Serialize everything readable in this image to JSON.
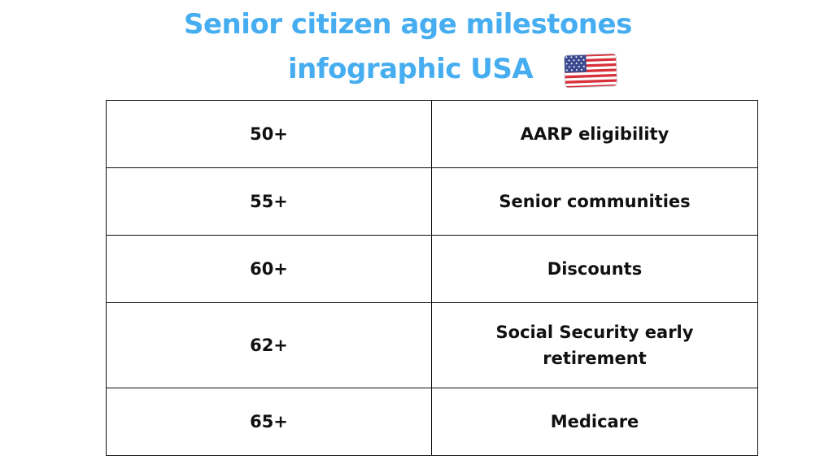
{
  "title": {
    "line1": "Senior citizen age milestones",
    "line2": "infographic USA"
  },
  "flag_icon": "usa-flag-icon",
  "colors": {
    "title": "#45adf0",
    "border": "#111111",
    "text": "#111111"
  },
  "table": {
    "rows": [
      {
        "age": "50+",
        "milestone": "AARP eligibility"
      },
      {
        "age": "55+",
        "milestone": "Senior communities"
      },
      {
        "age": "60+",
        "milestone": "Discounts"
      },
      {
        "age": "62+",
        "milestone": "Social Security early retirement"
      },
      {
        "age": "65+",
        "milestone": "Medicare"
      }
    ]
  }
}
